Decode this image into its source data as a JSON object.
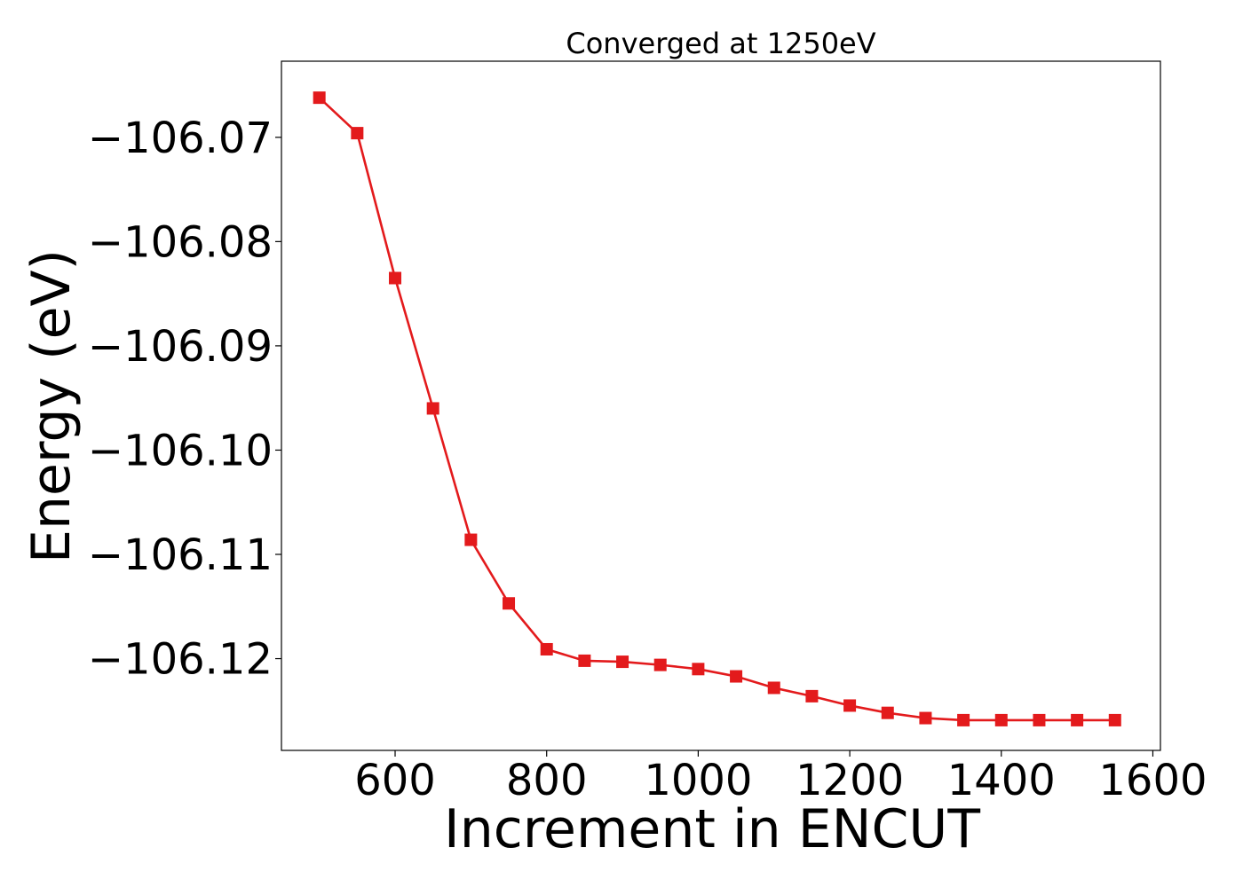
{
  "chart_data": {
    "type": "line",
    "title": "Converged at 1250eV",
    "xlabel": "Increment in ENCUT",
    "ylabel": "Energy (eV)",
    "xlim": [
      450,
      1610
    ],
    "ylim": [
      -106.1288,
      -106.0627
    ],
    "x_ticks": [
      600,
      800,
      1000,
      1200,
      1400,
      1600
    ],
    "x_tick_labels": [
      "600",
      "800",
      "1000",
      "1200",
      "1400",
      "1600"
    ],
    "y_ticks": [
      -106.07,
      -106.08,
      -106.09,
      -106.1,
      -106.11,
      -106.12
    ],
    "y_tick_labels": [
      "−106.07",
      "−106.08",
      "−106.09",
      "−106.10",
      "−106.11",
      "−106.12"
    ],
    "grid": false,
    "legend": "none",
    "series": [
      {
        "color": "#e31a1c",
        "marker": "square",
        "x": [
          500,
          550,
          600,
          650,
          700,
          750,
          800,
          850,
          900,
          950,
          1000,
          1050,
          1100,
          1150,
          1200,
          1250,
          1300,
          1350,
          1400,
          1450,
          1500,
          1550
        ],
        "y": [
          -106.0662,
          -106.0696,
          -106.0835,
          -106.096,
          -106.1086,
          -106.1147,
          -106.1191,
          -106.1202,
          -106.1203,
          -106.1206,
          -106.121,
          -106.1217,
          -106.1228,
          -106.1236,
          -106.1245,
          -106.1252,
          -106.1257,
          -106.1259,
          -106.1259,
          -106.1259,
          -106.1259,
          -106.1259
        ]
      }
    ]
  }
}
